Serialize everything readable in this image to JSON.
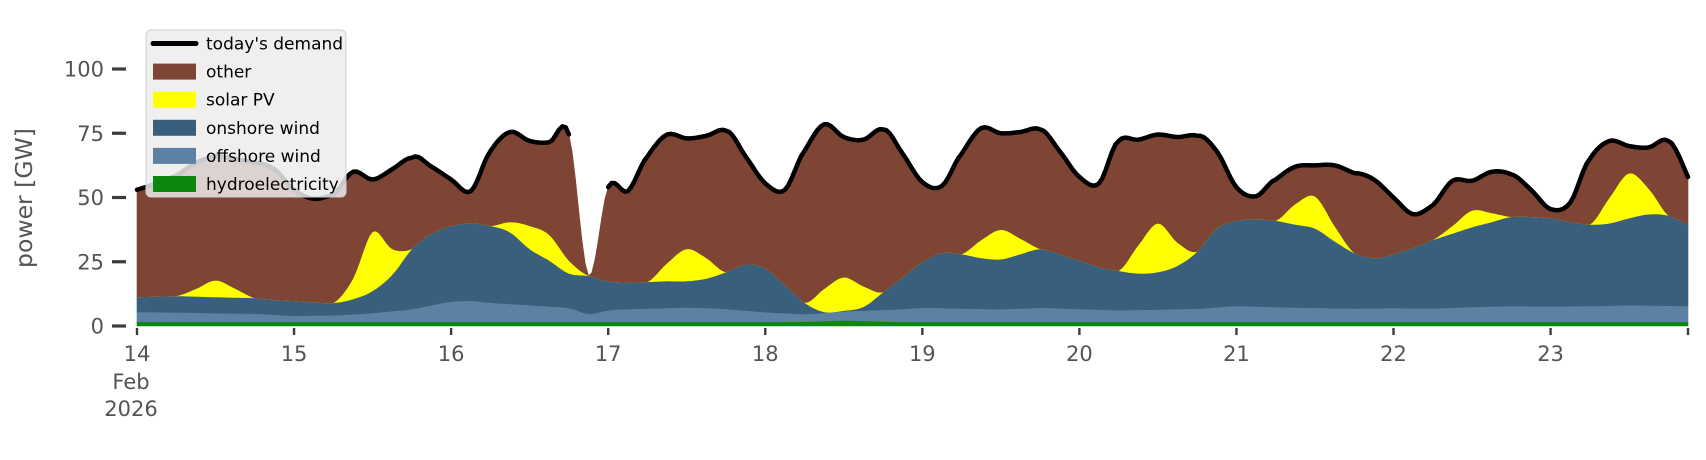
{
  "figure": {
    "background": "#ffffff",
    "tick_color": "#3c3c3c",
    "label_color": "#545454",
    "ylabel": "power [GW]",
    "y_tick_labels": [
      "0",
      "25",
      "50",
      "75",
      "100"
    ],
    "x_tick_labels": [
      "14",
      "15",
      "16",
      "17",
      "18",
      "19",
      "20",
      "21",
      "22",
      "23"
    ],
    "x_offset_label_lines": [
      "Feb",
      "2026"
    ]
  },
  "legend": {
    "background": "#ececec",
    "border": "#d0d0d0",
    "items": [
      {
        "label": "today's demand",
        "type": "line",
        "color": "#000000"
      },
      {
        "label": "other",
        "type": "patch",
        "color": "#7e4434"
      },
      {
        "label": "solar PV",
        "type": "patch",
        "color": "#ffff00"
      },
      {
        "label": "onshore wind",
        "type": "patch",
        "color": "#3a5f7d"
      },
      {
        "label": "offshore wind",
        "type": "patch",
        "color": "#5c81a3"
      },
      {
        "label": "hydroelectricity",
        "type": "patch",
        "color": "#0c860c"
      }
    ]
  },
  "chart_data": {
    "type": "area",
    "stacked": true,
    "title": "",
    "xlabel": "",
    "ylabel": "power [GW]",
    "x_unit": "day of February 2026 (fractional days, 3-hour steps)",
    "ylim": [
      0,
      118
    ],
    "y_ticks": [
      0,
      25,
      50,
      75,
      100
    ],
    "x_ticks": [
      14,
      15,
      16,
      17,
      18,
      19,
      20,
      21,
      22,
      23
    ],
    "grid": false,
    "legend_position": "upper left",
    "x": [
      14.0,
      14.125,
      14.25,
      14.375,
      14.5,
      14.625,
      14.75,
      14.875,
      15.0,
      15.125,
      15.25,
      15.375,
      15.5,
      15.625,
      15.75,
      15.875,
      16.0,
      16.125,
      16.25,
      16.375,
      16.5,
      16.625,
      16.75,
      16.875,
      17.0,
      17.125,
      17.25,
      17.375,
      17.5,
      17.625,
      17.75,
      17.875,
      18.0,
      18.125,
      18.25,
      18.375,
      18.5,
      18.625,
      18.75,
      18.875,
      19.0,
      19.125,
      19.25,
      19.375,
      19.5,
      19.625,
      19.75,
      19.875,
      20.0,
      20.125,
      20.25,
      20.375,
      20.5,
      20.625,
      20.75,
      20.875,
      21.0,
      21.125,
      21.25,
      21.375,
      21.5,
      21.625,
      21.75,
      21.875,
      22.0,
      22.125,
      22.25,
      22.375,
      22.5,
      22.625,
      22.75,
      22.875,
      23.0,
      23.125,
      23.25,
      23.375,
      23.5,
      23.625,
      23.75,
      23.875
    ],
    "series": [
      {
        "name": "hydroelectricity",
        "color": "#0c860c",
        "values": [
          1.6,
          1.6,
          1.6,
          1.6,
          1.6,
          1.6,
          1.6,
          1.6,
          1.6,
          1.6,
          1.6,
          1.6,
          1.6,
          1.6,
          1.6,
          1.6,
          1.6,
          1.6,
          1.6,
          1.6,
          1.6,
          1.6,
          1.6,
          1.6,
          1.6,
          1.6,
          1.6,
          1.6,
          1.6,
          1.6,
          1.6,
          1.6,
          1.6,
          1.6,
          1.7,
          1.9,
          2.2,
          2.0,
          1.8,
          1.6,
          1.6,
          1.6,
          1.6,
          1.6,
          1.6,
          1.6,
          1.6,
          1.6,
          1.6,
          1.6,
          1.6,
          1.6,
          1.6,
          1.6,
          1.6,
          1.6,
          1.6,
          1.6,
          1.6,
          1.6,
          1.6,
          1.6,
          1.6,
          1.6,
          1.6,
          1.6,
          1.6,
          1.6,
          1.6,
          1.6,
          1.6,
          1.6,
          1.6,
          1.6,
          1.6,
          1.6,
          1.6,
          1.6,
          1.6,
          1.6
        ]
      },
      {
        "name": "offshore wind",
        "color": "#5c81a3",
        "values": [
          3.9,
          3.8,
          3.7,
          3.6,
          3.4,
          3.3,
          3.2,
          2.8,
          2.4,
          2.5,
          2.6,
          3.0,
          3.5,
          4.2,
          5.0,
          6.5,
          7.9,
          8.2,
          7.5,
          7.0,
          6.5,
          6.0,
          5.4,
          3.2,
          4.5,
          5.0,
          5.2,
          5.4,
          5.6,
          5.4,
          5.0,
          4.4,
          3.8,
          3.4,
          3.0,
          3.2,
          3.5,
          4.0,
          4.5,
          5.0,
          5.5,
          5.4,
          5.2,
          5.1,
          5.0,
          5.2,
          5.5,
          5.3,
          5.0,
          4.8,
          4.6,
          4.7,
          4.8,
          5.0,
          5.2,
          5.7,
          6.2,
          6.0,
          5.8,
          5.6,
          5.5,
          5.3,
          5.2,
          5.3,
          5.4,
          5.3,
          5.3,
          5.5,
          5.8,
          6.0,
          6.2,
          6.1,
          6.0,
          6.1,
          6.2,
          6.3,
          6.5,
          6.4,
          6.3,
          6.2
        ]
      },
      {
        "name": "onshore wind",
        "color": "#3a5f7d",
        "values": [
          5.8,
          6.1,
          6.4,
          6.3,
          6.3,
          6.2,
          6.1,
          5.8,
          5.8,
          5.2,
          4.8,
          5.9,
          8.6,
          14.2,
          23.4,
          27.9,
          29.5,
          30.2,
          29.9,
          27.9,
          21.9,
          17.9,
          13.5,
          14.7,
          11.4,
          10.4,
          10.4,
          10.5,
          10.3,
          11.5,
          14.4,
          18.0,
          17.1,
          11.0,
          4.4,
          0.4,
          0.3,
          1.5,
          6.9,
          12.4,
          17.9,
          21.5,
          21.2,
          19.8,
          19.4,
          21.2,
          22.9,
          21.1,
          18.9,
          16.6,
          15.3,
          14.2,
          14.6,
          16.9,
          22.2,
          30.7,
          33.2,
          33.9,
          33.6,
          32.3,
          30.9,
          26.1,
          21.7,
          19.6,
          21.0,
          23.6,
          26.6,
          28.9,
          31.1,
          32.9,
          34.7,
          34.8,
          34.4,
          32.8,
          31.7,
          32.1,
          33.9,
          35.5,
          35.1,
          31.7
        ]
      },
      {
        "name": "solar PV",
        "color": "#ffff00",
        "values": [
          0,
          0,
          0,
          3.0,
          6.5,
          3.5,
          0,
          0,
          0,
          0,
          0,
          8.0,
          23.0,
          10.0,
          0,
          0,
          0,
          0,
          0,
          4.0,
          9.0,
          10.0,
          5.0,
          0,
          0,
          0,
          0,
          7.0,
          12.5,
          8.0,
          0,
          0,
          0,
          0,
          0,
          9.0,
          13.0,
          8.0,
          0,
          0,
          0,
          0,
          0,
          7.0,
          11.5,
          6.0,
          0,
          0,
          0,
          0,
          0,
          11.0,
          19.0,
          9.0,
          0,
          0,
          0,
          0,
          0,
          8.0,
          12.5,
          6.0,
          0,
          0,
          0,
          0,
          0,
          3.0,
          6.5,
          3.5,
          0,
          0,
          0,
          0,
          0,
          10.0,
          17.5,
          10.0,
          0,
          0
        ]
      },
      {
        "name": "other",
        "color": "#7e4434",
        "values": [
          41.7,
          44.0,
          46.8,
          49.0,
          48.2,
          50.4,
          52.6,
          50.8,
          43.2,
          40.2,
          42.0,
          41.5,
          20.3,
          31.0,
          35.5,
          26.0,
          18.0,
          12.5,
          29.0,
          35.0,
          33.0,
          36.0,
          49.0,
          0.0,
          36.5,
          35.5,
          48.8,
          50.0,
          43.0,
          47.5,
          55.0,
          42.0,
          33.0,
          37.0,
          59.0,
          64.0,
          54.5,
          57.0,
          63.3,
          48.0,
          31.0,
          26.0,
          39.0,
          43.5,
          37.5,
          41.5,
          46.5,
          40.0,
          32.5,
          32.5,
          50.5,
          41.0,
          34.5,
          41.0,
          45.0,
          30.0,
          13.0,
          9.0,
          16.0,
          14.5,
          12.0,
          23.5,
          31.0,
          30.5,
          22.0,
          13.0,
          13.5,
          17.5,
          11.5,
          16.0,
          16.5,
          10.5,
          3.5,
          7.5,
          25.5,
          22.0,
          10.5,
          16.0,
          29.0,
          18.5
        ]
      }
    ],
    "line": {
      "name": "today's demand",
      "color": "#000000",
      "width": 4.5,
      "values": [
        53,
        55.5,
        58.5,
        63.5,
        66,
        65,
        63.5,
        61,
        53,
        49.5,
        51,
        60,
        57,
        61,
        65.5,
        62,
        57,
        52.5,
        68,
        75.5,
        72,
        71.5,
        74.5,
        null,
        54,
        52.5,
        66,
        74.5,
        73,
        74,
        76,
        66,
        55.5,
        53,
        68,
        78.5,
        73.5,
        72.5,
        76.5,
        67,
        56,
        54.5,
        67,
        77,
        75,
        75.5,
        76.5,
        68,
        58,
        55.5,
        72,
        72.5,
        74.5,
        73.5,
        74,
        68,
        54,
        50.5,
        57,
        62,
        62.5,
        62.5,
        59.5,
        57,
        50,
        43.5,
        47,
        56.5,
        56.5,
        60,
        59,
        53,
        45.5,
        48,
        65,
        72,
        70,
        69.5,
        72,
        58
      ]
    }
  }
}
